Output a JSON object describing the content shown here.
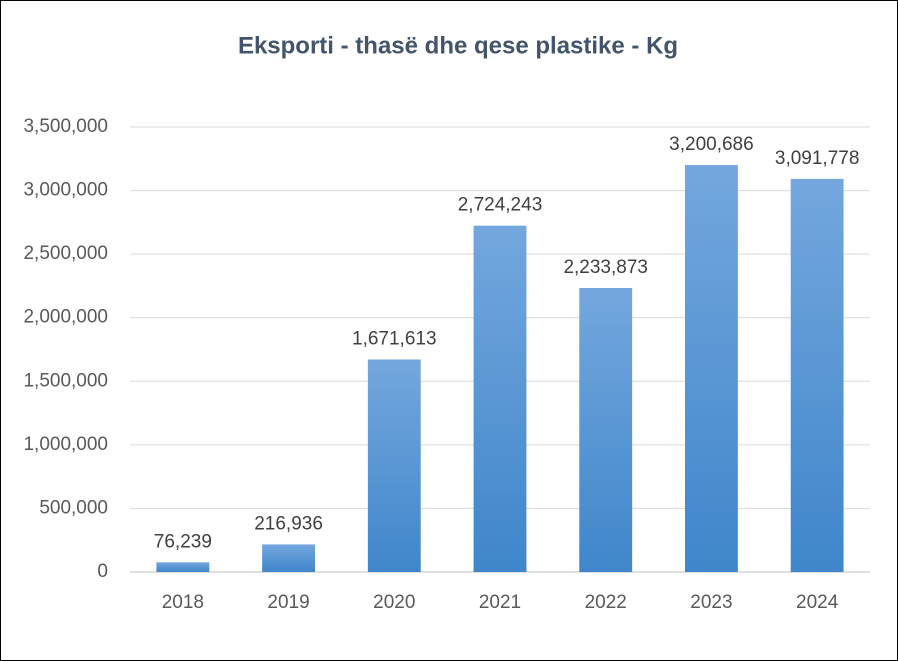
{
  "chart_data": {
    "type": "bar",
    "title": "Eksporti - thasë dhe qese plastike - Kg",
    "categories": [
      "2018",
      "2019",
      "2020",
      "2021",
      "2022",
      "2023",
      "2024"
    ],
    "values": [
      76239,
      216936,
      1671613,
      2724243,
      2233873,
      3200686,
      3091778
    ],
    "value_labels": [
      "76,239",
      "216,936",
      "1,671,613",
      "2,724,243",
      "2,233,873",
      "3,200,686",
      "3,091,778"
    ],
    "color": "#5b9bd5",
    "ylim": [
      0,
      3500000
    ],
    "yticks": [
      0,
      {
        "value": 500000,
        "label": "500,000"
      },
      {
        "value": 1000000,
        "label": "1,000,000"
      },
      {
        "value": 1500000,
        "label": "1,500,000"
      },
      {
        "value": 2000000,
        "label": "2,000,000"
      },
      {
        "value": 2500000,
        "label": "2,500,000"
      },
      {
        "value": 3000000,
        "label": "3,000,000"
      },
      {
        "value": 3500000,
        "label": "3,500,000"
      }
    ],
    "grid": true
  }
}
